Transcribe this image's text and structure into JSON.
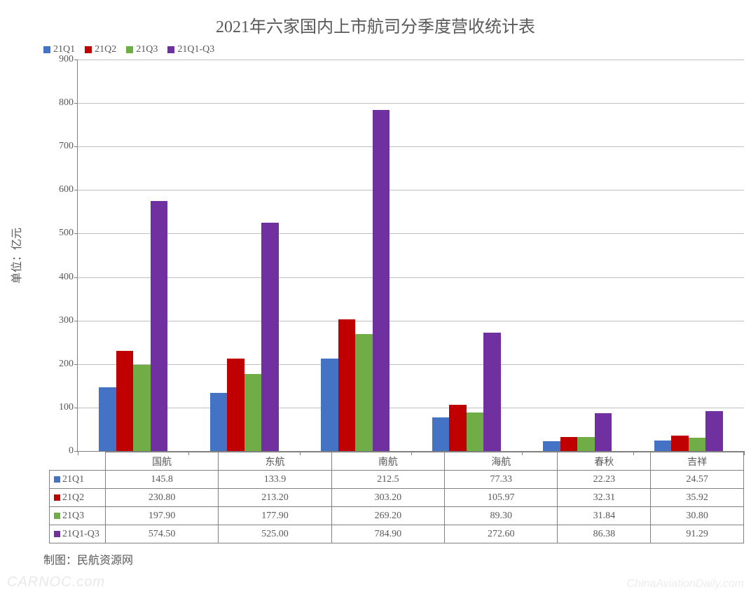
{
  "chart": {
    "title": "2021年六家国内上市航司分季度营收统计表",
    "y_axis_label": "单位：亿元",
    "ylim": [
      0,
      900
    ],
    "ytick_step": 100,
    "yticks": [
      0,
      100,
      200,
      300,
      400,
      500,
      600,
      700,
      800,
      900
    ],
    "grid_color": "#bfbfbf",
    "axis_color": "#808080",
    "background_color": "#ffffff",
    "bar_group_width_ratio": 0.62,
    "categories": [
      "国航",
      "东航",
      "南航",
      "海航",
      "春秋",
      "吉祥"
    ],
    "series": [
      {
        "key": "21Q1",
        "label": "21Q1",
        "color": "#4472c4",
        "values": [
          145.8,
          133.9,
          212.5,
          77.33,
          22.23,
          24.57
        ],
        "display": [
          "145.8",
          "133.9",
          "212.5",
          "77.33",
          "22.23",
          "24.57"
        ]
      },
      {
        "key": "21Q2",
        "label": "21Q2",
        "color": "#c00000",
        "values": [
          230.8,
          213.2,
          303.2,
          105.97,
          32.31,
          35.92
        ],
        "display": [
          "230.80",
          "213.20",
          "303.20",
          "105.97",
          "32.31",
          "35.92"
        ]
      },
      {
        "key": "21Q3",
        "label": "21Q3",
        "color": "#70ad47",
        "values": [
          197.9,
          177.9,
          269.2,
          89.3,
          31.84,
          30.8
        ],
        "display": [
          "197.90",
          "177.90",
          "269.20",
          "89.30",
          "31.84",
          "30.80"
        ]
      },
      {
        "key": "21Q1-Q3",
        "label": "21Q1-Q3",
        "color": "#7030a0",
        "values": [
          574.5,
          525.0,
          784.9,
          272.6,
          86.38,
          91.29
        ],
        "display": [
          "574.50",
          "525.00",
          "784.90",
          "272.60",
          "86.38",
          "91.29"
        ]
      }
    ]
  },
  "footer_text": "制图：民航资源网",
  "watermark_left": "CARNOC.com",
  "watermark_right": "ChinaAviationDaily.com"
}
